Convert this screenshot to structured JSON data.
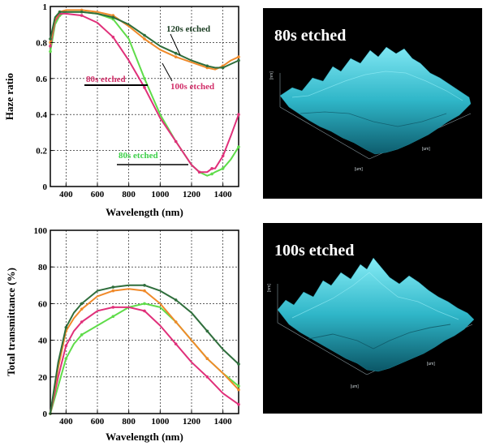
{
  "chart_data": [
    {
      "type": "line",
      "id": "haze",
      "xlabel": "Wavelength (nm)",
      "ylabel": "Haze ratio",
      "xlim": [
        300,
        1500
      ],
      "ylim": [
        0,
        1
      ],
      "xticks": [
        400,
        600,
        800,
        1000,
        1200,
        1400
      ],
      "yticks": [
        0,
        0.2,
        0.4,
        0.6,
        0.8,
        1
      ],
      "ytick_labels": [
        "0",
        "0.2",
        "0.4",
        "0.6",
        "0.8",
        "1"
      ],
      "grid": true,
      "series": [
        {
          "name": "80s etched",
          "color": "#5fdc4a",
          "x": [
            300,
            330,
            360,
            400,
            500,
            600,
            700,
            800,
            900,
            1000,
            1100,
            1200,
            1250,
            1300,
            1330,
            1350,
            1400,
            1450,
            1500
          ],
          "y": [
            0.75,
            0.9,
            0.95,
            0.97,
            0.97,
            0.96,
            0.93,
            0.82,
            0.6,
            0.4,
            0.25,
            0.12,
            0.08,
            0.06,
            0.07,
            0.08,
            0.1,
            0.15,
            0.22
          ]
        },
        {
          "name": "80s etched",
          "color": "#e0307a",
          "x": [
            300,
            330,
            360,
            400,
            500,
            600,
            700,
            800,
            900,
            1000,
            1100,
            1200,
            1250,
            1300,
            1330,
            1350,
            1400,
            1450,
            1500
          ],
          "y": [
            0.78,
            0.92,
            0.96,
            0.96,
            0.95,
            0.91,
            0.83,
            0.7,
            0.55,
            0.38,
            0.25,
            0.12,
            0.08,
            0.08,
            0.1,
            0.1,
            0.17,
            0.28,
            0.4
          ]
        },
        {
          "name": "100s etched",
          "color": "#f08a2a",
          "x": [
            300,
            330,
            360,
            400,
            500,
            600,
            700,
            800,
            900,
            1000,
            1100,
            1200,
            1300,
            1350,
            1400,
            1450,
            1500
          ],
          "y": [
            0.8,
            0.93,
            0.97,
            0.98,
            0.98,
            0.97,
            0.95,
            0.89,
            0.82,
            0.76,
            0.72,
            0.69,
            0.66,
            0.65,
            0.67,
            0.7,
            0.72
          ]
        },
        {
          "name": "120s etched",
          "color": "#2f6e3c",
          "x": [
            300,
            330,
            360,
            400,
            500,
            600,
            700,
            800,
            900,
            1000,
            1100,
            1200,
            1300,
            1350,
            1400,
            1450,
            1500
          ],
          "y": [
            0.82,
            0.94,
            0.97,
            0.97,
            0.97,
            0.96,
            0.94,
            0.9,
            0.84,
            0.78,
            0.74,
            0.7,
            0.67,
            0.66,
            0.66,
            0.68,
            0.7
          ]
        }
      ]
    },
    {
      "type": "line",
      "id": "transmittance",
      "xlabel": "Wavelength (nm)",
      "ylabel": "Total transmittance (%)",
      "xlim": [
        300,
        1500
      ],
      "ylim": [
        0,
        100
      ],
      "xticks": [
        400,
        600,
        800,
        1000,
        1200,
        1400
      ],
      "yticks": [
        0,
        20,
        40,
        60,
        80,
        100
      ],
      "grid": true,
      "series": [
        {
          "name": "80s etched",
          "color": "#5fdc4a",
          "x": [
            300,
            350,
            400,
            450,
            500,
            600,
            700,
            800,
            900,
            1000,
            1100,
            1200,
            1300,
            1400,
            1500
          ],
          "y": [
            0,
            15,
            30,
            38,
            43,
            48,
            53,
            58,
            60,
            58,
            50,
            40,
            30,
            22,
            15
          ]
        },
        {
          "name": "80s etched",
          "color": "#e0307a",
          "x": [
            300,
            350,
            400,
            450,
            500,
            600,
            700,
            800,
            900,
            1000,
            1100,
            1200,
            1300,
            1400,
            1500
          ],
          "y": [
            0,
            20,
            37,
            45,
            50,
            56,
            58,
            58,
            56,
            48,
            38,
            28,
            20,
            11,
            5
          ]
        },
        {
          "name": "100s etched",
          "color": "#f08a2a",
          "x": [
            300,
            350,
            400,
            450,
            500,
            600,
            700,
            800,
            900,
            1000,
            1100,
            1200,
            1300,
            1400,
            1500
          ],
          "y": [
            0,
            25,
            45,
            52,
            57,
            64,
            67,
            68,
            67,
            60,
            50,
            40,
            30,
            22,
            13
          ]
        },
        {
          "name": "120s etched",
          "color": "#2f6e3c",
          "x": [
            300,
            350,
            400,
            450,
            500,
            600,
            700,
            800,
            900,
            1000,
            1100,
            1200,
            1300,
            1400,
            1500
          ],
          "y": [
            0,
            28,
            47,
            55,
            60,
            67,
            69,
            70,
            70,
            67,
            62,
            55,
            45,
            35,
            27
          ]
        }
      ]
    }
  ],
  "annotations": {
    "haze_120": "120s etched",
    "haze_80_pink": "80s etched",
    "haze_100": "100s etched",
    "haze_80_green": "80s etched"
  },
  "afm_panels": [
    {
      "title": "80s etched",
      "axis_unit": "[um]",
      "z_unit": "[nm]"
    },
    {
      "title": "100s etched",
      "axis_unit": "[um]",
      "z_unit": "[nm]"
    }
  ],
  "colors": {
    "afm_background": "#000000",
    "afm_surface": "#2fb6c8"
  }
}
